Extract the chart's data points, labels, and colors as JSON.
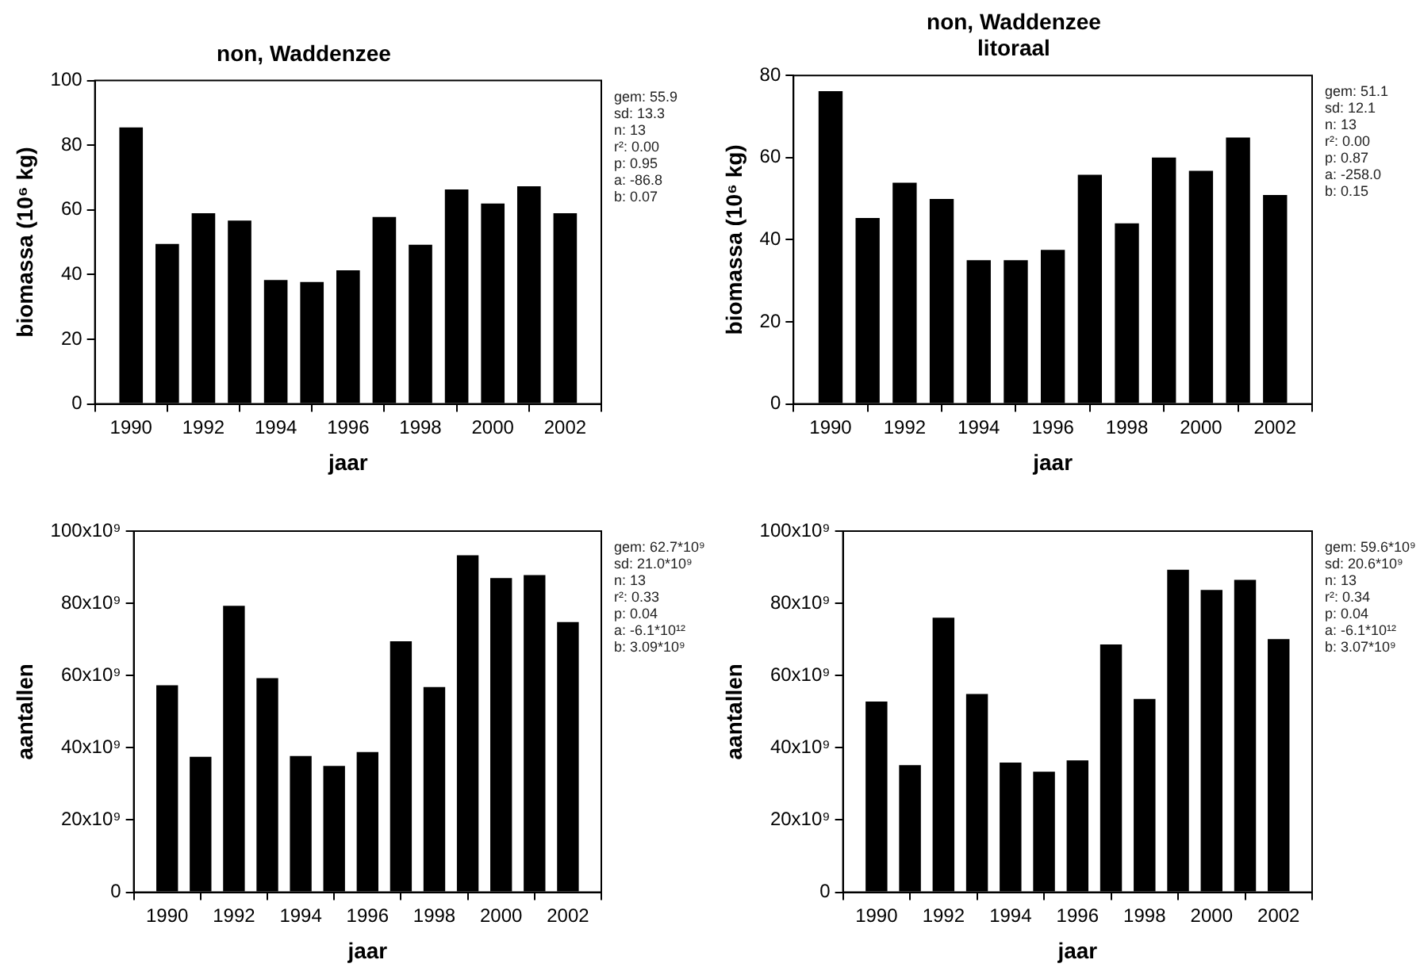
{
  "chart_data": [
    {
      "type": "bar",
      "title": "non, Waddenzee",
      "xlabel": "jaar",
      "ylabel": "biomassa (10⁶ kg)",
      "x": [
        1990,
        1991,
        1992,
        1993,
        1994,
        1995,
        1996,
        1997,
        1998,
        1999,
        2000,
        2001,
        2002
      ],
      "series": [
        {
          "color": "#000000",
          "values": [
            85.5,
            49.5,
            59,
            56.7,
            38.3,
            37.7,
            41.3,
            57.8,
            49.2,
            66.3,
            62,
            67.3,
            59
          ]
        }
      ],
      "xlim": [
        1989,
        2003
      ],
      "xticks": [
        1990,
        1992,
        1994,
        1996,
        1998,
        2000,
        2002
      ],
      "ylim": [
        0,
        100
      ],
      "yticks": [
        0,
        20,
        40,
        60,
        80,
        100
      ],
      "grid": false,
      "legend": false,
      "annotations": [
        "gem: 55.9",
        "sd: 13.3",
        "n: 13",
        "r²: 0.00",
        "p: 0.95",
        "a: -86.8",
        "b: 0.07"
      ]
    },
    {
      "type": "bar",
      "title": "non, Waddenzee\nlitoraal",
      "xlabel": "jaar",
      "ylabel": "biomassa (10⁶ kg)",
      "x": [
        1990,
        1991,
        1992,
        1993,
        1994,
        1995,
        1996,
        1997,
        1998,
        1999,
        2000,
        2001,
        2002
      ],
      "series": [
        {
          "color": "#000000",
          "values": [
            76.2,
            45.3,
            53.9,
            49.9,
            35,
            35,
            37.5,
            55.8,
            44,
            60,
            56.8,
            64.9,
            50.9
          ]
        }
      ],
      "xlim": [
        1989,
        2003
      ],
      "xticks": [
        1990,
        1992,
        1994,
        1996,
        1998,
        2000,
        2002
      ],
      "ylim": [
        0,
        80
      ],
      "yticks": [
        0,
        20,
        40,
        60,
        80
      ],
      "grid": false,
      "legend": false,
      "annotations": [
        "gem: 51.1",
        "sd: 12.1",
        "n: 13",
        "r²: 0.00",
        "p: 0.87",
        "a: -258.0",
        "b: 0.15"
      ]
    },
    {
      "type": "bar",
      "xlabel": "jaar",
      "ylabel": "aantallen",
      "x": [
        1990,
        1991,
        1992,
        1993,
        1994,
        1995,
        1996,
        1997,
        1998,
        1999,
        2000,
        2001,
        2002
      ],
      "series": [
        {
          "color": "#000000",
          "values": [
            57300000000.0,
            37500000000.0,
            79300000000.0,
            59300000000.0,
            37700000000.0,
            35000000000.0,
            38800000000.0,
            69500000000.0,
            56800000000.0,
            93300000000.0,
            87000000000.0,
            87800000000.0,
            74800000000.0
          ]
        }
      ],
      "xlim": [
        1989,
        2003
      ],
      "xticks": [
        1990,
        1992,
        1994,
        1996,
        1998,
        2000,
        2002
      ],
      "ylim": [
        0,
        100000000000.0
      ],
      "yticks": [
        0,
        {
          "value": 20000000000.0,
          "label": "20x10⁹"
        },
        {
          "value": 40000000000.0,
          "label": "40x10⁹"
        },
        {
          "value": 60000000000.0,
          "label": "60x10⁹"
        },
        {
          "value": 80000000000.0,
          "label": "80x10⁹"
        },
        {
          "value": 100000000000.0,
          "label": "100x10⁹"
        }
      ],
      "grid": false,
      "legend": false,
      "annotations": [
        "gem: 62.7*10⁹",
        "sd: 21.0*10⁹",
        "n: 13",
        "r²: 0.33",
        "p: 0.04",
        "a: -6.1*10¹²",
        "b: 3.09*10⁹"
      ]
    },
    {
      "type": "bar",
      "xlabel": "jaar",
      "ylabel": "aantallen",
      "x": [
        1990,
        1991,
        1992,
        1993,
        1994,
        1995,
        1996,
        1997,
        1998,
        1999,
        2000,
        2001,
        2002
      ],
      "series": [
        {
          "color": "#000000",
          "values": [
            52800000000.0,
            35200000000.0,
            76000000000.0,
            54900000000.0,
            35900000000.0,
            33400000000.0,
            36500000000.0,
            68600000000.0,
            53500000000.0,
            89300000000.0,
            83700000000.0,
            86500000000.0,
            70100000000.0
          ]
        }
      ],
      "xlim": [
        1989,
        2003
      ],
      "xticks": [
        1990,
        1992,
        1994,
        1996,
        1998,
        2000,
        2002
      ],
      "ylim": [
        0,
        100000000000.0
      ],
      "yticks": [
        0,
        {
          "value": 20000000000.0,
          "label": "20x10⁹"
        },
        {
          "value": 40000000000.0,
          "label": "40x10⁹"
        },
        {
          "value": 60000000000.0,
          "label": "60x10⁹"
        },
        {
          "value": 80000000000.0,
          "label": "80x10⁹"
        },
        {
          "value": 100000000000.0,
          "label": "100x10⁹"
        }
      ],
      "grid": false,
      "legend": false,
      "annotations": [
        "gem: 59.6*10⁹",
        "sd: 20.6*10⁹",
        "n: 13",
        "r²: 0.34",
        "p: 0.04",
        "a: -6.1*10¹²",
        "b: 3.07*10⁹"
      ]
    }
  ]
}
